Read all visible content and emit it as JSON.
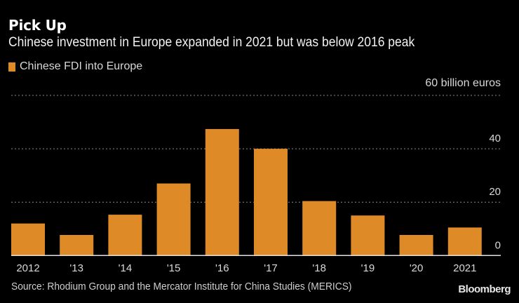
{
  "header": {
    "title": "Pick Up",
    "subtitle": "Chinese investment in Europe expanded in 2021 but was below 2016 peak"
  },
  "legend": {
    "label": "Chinese FDI into Europe",
    "icon": "orange-square-swatch"
  },
  "units_label": "60 billion euros",
  "footer": {
    "source": "Source: Rhodium Group and the Mercator Institute for China Studies (MERICS)",
    "brand": "Bloomberg"
  },
  "colors": {
    "bar": "#de8a27",
    "background": "#000000",
    "grid": "#8a8a8a",
    "axis": "#e0e0e0"
  },
  "chart_data": {
    "type": "bar",
    "title": "Pick Up",
    "subtitle": "Chinese investment in Europe expanded in 2021 but was below 2016 peak",
    "categories": [
      "2012",
      "'13",
      "'14",
      "'15",
      "'16",
      "'17",
      "'18",
      "'19",
      "'20",
      "2021"
    ],
    "series": [
      {
        "name": "Chinese FDI into Europe",
        "values": [
          12,
          7.7,
          15.3,
          27,
          47.4,
          40,
          20.4,
          15,
          7.7,
          10.5
        ]
      }
    ],
    "xlabel": "",
    "ylabel": "billion euros",
    "ylim": [
      0,
      60
    ],
    "yticks": [
      0,
      20,
      40,
      60
    ],
    "ytick_labels": [
      "0",
      "20",
      "40",
      "60 billion euros"
    ],
    "grid": true,
    "y_axis_side": "right",
    "legend_position": "top-left",
    "source": "Source: Rhodium Group and the Mercator Institute for China Studies (MERICS)"
  }
}
